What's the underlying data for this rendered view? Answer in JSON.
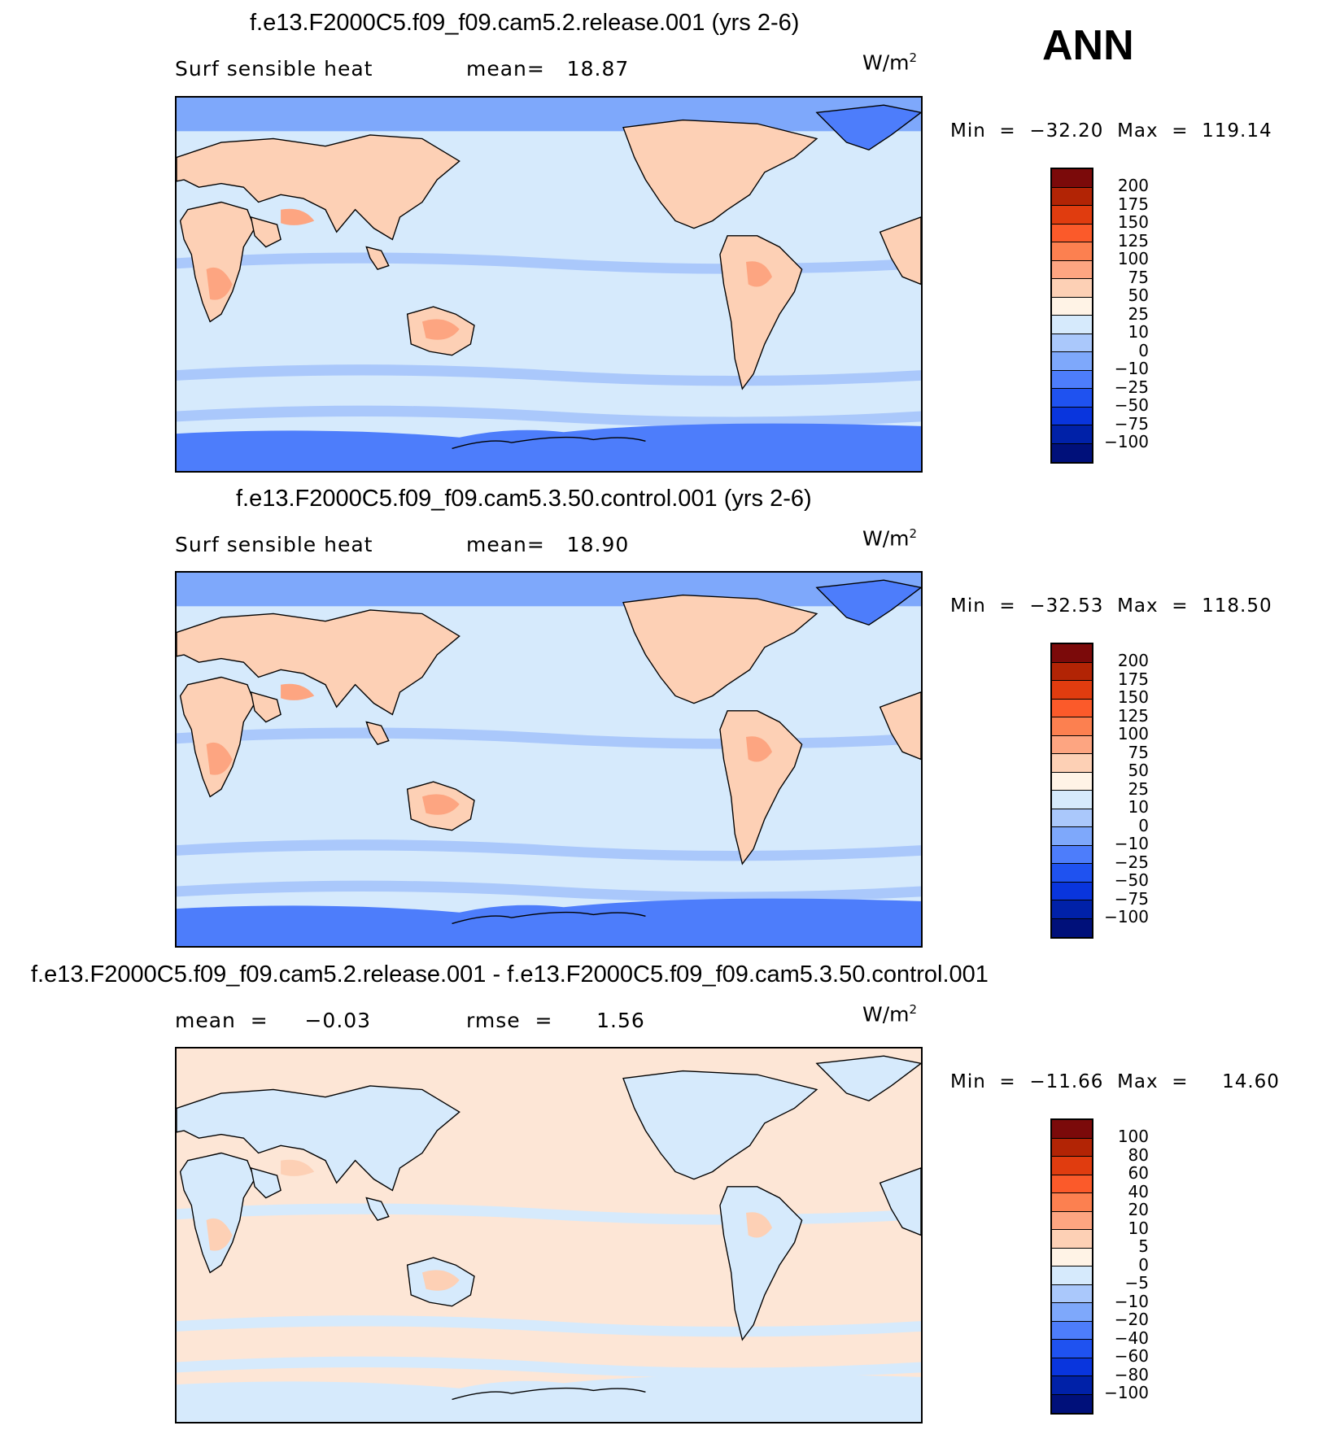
{
  "season_label": "ANN",
  "panels": [
    {
      "id": "test",
      "title": "f.e13.F2000C5.f09_f09.cam5.2.release.001 (yrs 2-6)",
      "variable": "Surf sensible heat",
      "stat1": "mean=   18.87",
      "stat2": "",
      "units": "W/m",
      "units_exp": "2",
      "minmax": "Min  =  −32.20  Max  =  119.14",
      "palette": [
        "#7b0a0a",
        "#b22405",
        "#e03c0f",
        "#fb5a2a",
        "#fc8050",
        "#fda581",
        "#fdd0b5",
        "#fff3e6",
        "#d6eafc",
        "#aac8fb",
        "#7ea8fb",
        "#4d7dfb",
        "#1f52f0",
        "#0935dd",
        "#0021a8",
        "#00107a"
      ],
      "levels": [
        "200",
        "175",
        "150",
        "125",
        "100",
        "75",
        "50",
        "25",
        "10",
        "0",
        "−10",
        "−25",
        "−50",
        "−75",
        "−100"
      ],
      "fill": {
        "ocean": "#d6eafc",
        "land": "#fdd0b5",
        "hotspot": "#fda581",
        "band": "#aac8fb",
        "polar": "#4d7dfb",
        "arctic": "#7ea8fb"
      }
    },
    {
      "id": "control",
      "title": "f.e13.F2000C5.f09_f09.cam5.3.50.control.001 (yrs 2-6)",
      "variable": "Surf sensible heat",
      "stat1": "mean=   18.90",
      "stat2": "",
      "units": "W/m",
      "units_exp": "2",
      "minmax": "Min  =  −32.53  Max  =  118.50",
      "palette": [
        "#7b0a0a",
        "#b22405",
        "#e03c0f",
        "#fb5a2a",
        "#fc8050",
        "#fda581",
        "#fdd0b5",
        "#fff3e6",
        "#d6eafc",
        "#aac8fb",
        "#7ea8fb",
        "#4d7dfb",
        "#1f52f0",
        "#0935dd",
        "#0021a8",
        "#00107a"
      ],
      "levels": [
        "200",
        "175",
        "150",
        "125",
        "100",
        "75",
        "50",
        "25",
        "10",
        "0",
        "−10",
        "−25",
        "−50",
        "−75",
        "−100"
      ],
      "fill": {
        "ocean": "#d6eafc",
        "land": "#fdd0b5",
        "hotspot": "#fda581",
        "band": "#aac8fb",
        "polar": "#4d7dfb",
        "arctic": "#7ea8fb"
      }
    },
    {
      "id": "diff",
      "title": "f.e13.F2000C5.f09_f09.cam5.2.release.001 - f.e13.F2000C5.f09_f09.cam5.3.50.control.001",
      "variable": "",
      "stat1": "mean  =     −0.03",
      "stat2": "rmse  =      1.56",
      "units": "W/m",
      "units_exp": "2",
      "minmax": "Min  =  −11.66  Max  =     14.60",
      "palette": [
        "#7b0a0a",
        "#b22405",
        "#e03c0f",
        "#fb5a2a",
        "#fc8050",
        "#fda581",
        "#fdd0b5",
        "#fff3e6",
        "#d6eafc",
        "#aac8fb",
        "#7ea8fb",
        "#4d7dfb",
        "#1f52f0",
        "#0935dd",
        "#0021a8",
        "#00107a"
      ],
      "levels": [
        "100",
        "80",
        "60",
        "40",
        "20",
        "10",
        "5",
        "0",
        "−5",
        "−10",
        "−20",
        "−40",
        "−60",
        "−80",
        "−100"
      ],
      "fill": {
        "ocean": "#fde6d6",
        "land": "#d6eafc",
        "hotspot": "#fdd0b5",
        "band": "#d6eafc",
        "polar": "#d6eafc",
        "arctic": "#fde6d6"
      }
    }
  ]
}
